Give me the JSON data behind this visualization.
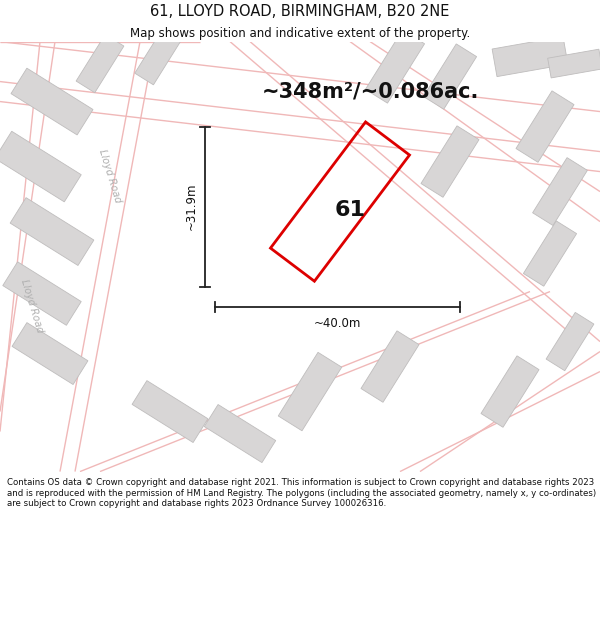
{
  "title": "61, LLOYD ROAD, BIRMINGHAM, B20 2NE",
  "subtitle": "Map shows position and indicative extent of the property.",
  "area_label": "~348m²/~0.086ac.",
  "property_number": "61",
  "width_label": "~40.0m",
  "height_label": "~31.9m",
  "road_label": "Lloyd Road",
  "road_label2": "Lloyd Road",
  "footer": "Contains OS data © Crown copyright and database right 2021. This information is subject to Crown copyright and database rights 2023 and is reproduced with the permission of HM Land Registry. The polygons (including the associated geometry, namely x, y co-ordinates) are subject to Crown copyright and database rights 2023 Ordnance Survey 100026316.",
  "map_bg": "#f2f0f0",
  "plot_color": "#dd0000",
  "building_fill": "#d8d6d6",
  "building_stroke": "#bfbdbd",
  "road_color": "#f0b8b8",
  "dim_color": "#222222",
  "title_fontsize": 10.5,
  "subtitle_fontsize": 8.5,
  "area_fontsize": 15,
  "number_fontsize": 16,
  "label_fontsize": 8.5,
  "footer_fontsize": 6.2,
  "road_label_color": "#b0b0b0"
}
